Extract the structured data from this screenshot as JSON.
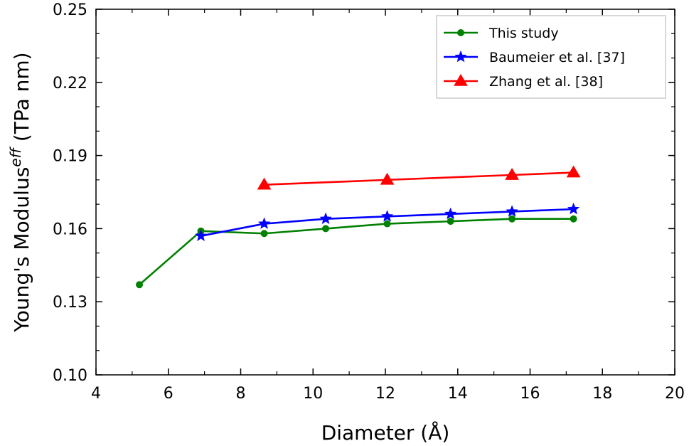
{
  "chart_data": {
    "type": "line",
    "xlabel": "Diameter (Å)",
    "ylabel_main": "Young's Modulus",
    "ylabel_sup": "eff",
    "ylabel_unit": " (TPa nm)",
    "xlim": [
      4,
      20
    ],
    "ylim": [
      0.1,
      0.25
    ],
    "xticks": [
      4,
      6,
      8,
      10,
      12,
      14,
      16,
      18,
      20
    ],
    "xtick_labels": [
      "4",
      "6",
      "8",
      "10",
      "12",
      "14",
      "16",
      "18",
      "20"
    ],
    "yticks": [
      0.1,
      0.13,
      0.16,
      0.19,
      0.22,
      0.25
    ],
    "ytick_labels": [
      "0.10",
      "0.13",
      "0.16",
      "0.19",
      "0.22",
      "0.25"
    ],
    "grid": false,
    "legend_position": "top-right",
    "series": [
      {
        "name": "This study",
        "color": "#008000",
        "marker": "circle",
        "x": [
          5.2,
          6.9,
          8.65,
          10.35,
          12.05,
          13.8,
          15.5,
          17.2
        ],
        "y": [
          0.137,
          0.159,
          0.158,
          0.16,
          0.162,
          0.163,
          0.164,
          0.164
        ]
      },
      {
        "name": "Baumeier et al. [37]",
        "color": "#0000ff",
        "marker": "star",
        "x": [
          6.9,
          8.65,
          10.35,
          12.05,
          13.8,
          15.5,
          17.2
        ],
        "y": [
          0.157,
          0.162,
          0.164,
          0.165,
          0.166,
          0.167,
          0.168
        ]
      },
      {
        "name": "Zhang et al. [38]",
        "color": "#ff0000",
        "marker": "triangle",
        "x": [
          8.65,
          12.05,
          15.5,
          17.2
        ],
        "y": [
          0.178,
          0.18,
          0.182,
          0.183
        ]
      }
    ]
  }
}
